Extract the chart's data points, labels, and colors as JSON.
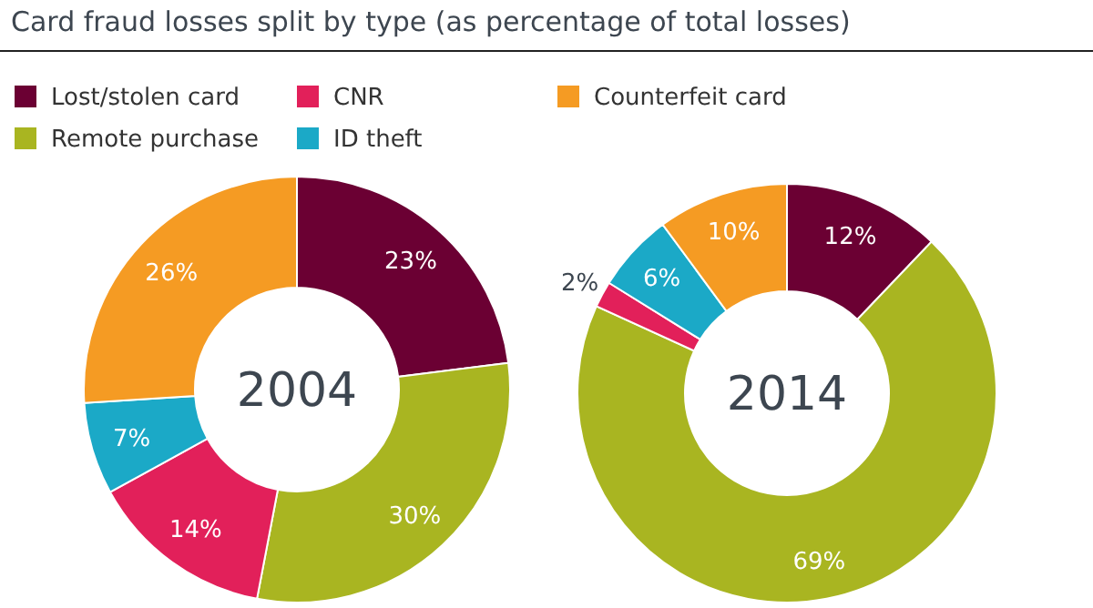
{
  "chart_data": [
    {
      "type": "donut",
      "title": "Card fraud losses split by type (as percentage of total losses)",
      "annotations": [
        "2004"
      ],
      "legend": "top",
      "categories": [
        "Lost/stolen card",
        "Remote purchase",
        "CNR",
        "ID theft",
        "Counterfeit card"
      ],
      "values": [
        23,
        30,
        14,
        7,
        26
      ],
      "value_labels": [
        "23%",
        "30%",
        "14%",
        "7%",
        "26%"
      ],
      "colors": [
        "#6b0033",
        "#a9b521",
        "#e2205a",
        "#1ba9c7",
        "#f59b23"
      ]
    },
    {
      "type": "donut",
      "annotations": [
        "2014"
      ],
      "categories": [
        null,
        null,
        null,
        null,
        null
      ],
      "values": [
        12,
        69,
        2,
        6,
        10
      ],
      "value_labels": [
        "12%",
        "69%",
        "2%",
        "6%",
        "10%"
      ],
      "colors": [
        "#6b0033",
        "#a9b521",
        "#e2205a",
        "#1ba9c7",
        "#f59b23"
      ]
    }
  ]
}
